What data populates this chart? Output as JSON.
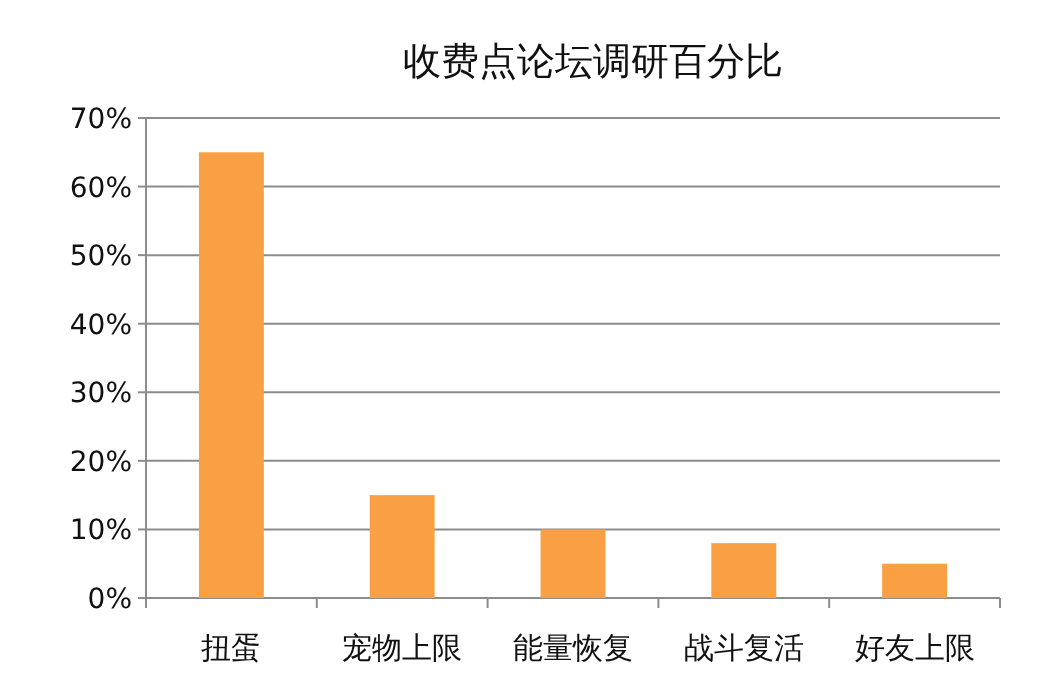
{
  "chart_data": {
    "type": "bar",
    "title": "收费点论坛调研百分比",
    "categories": [
      "扭蛋",
      "宠物上限",
      "能量恢复",
      "战斗复活",
      "好友上限"
    ],
    "values": [
      65,
      15,
      10,
      8,
      5
    ],
    "color": "#f9a045",
    "ylim": [
      0,
      70
    ],
    "yticks": [
      {
        "value": 0,
        "label": "0%"
      },
      {
        "value": 10,
        "label": "10%"
      },
      {
        "value": 20,
        "label": "20%"
      },
      {
        "value": 30,
        "label": "30%"
      },
      {
        "value": 40,
        "label": "40%"
      },
      {
        "value": 50,
        "label": "50%"
      },
      {
        "value": 60,
        "label": "60%"
      },
      {
        "value": 70,
        "label": "70%"
      }
    ],
    "grid": "y"
  }
}
